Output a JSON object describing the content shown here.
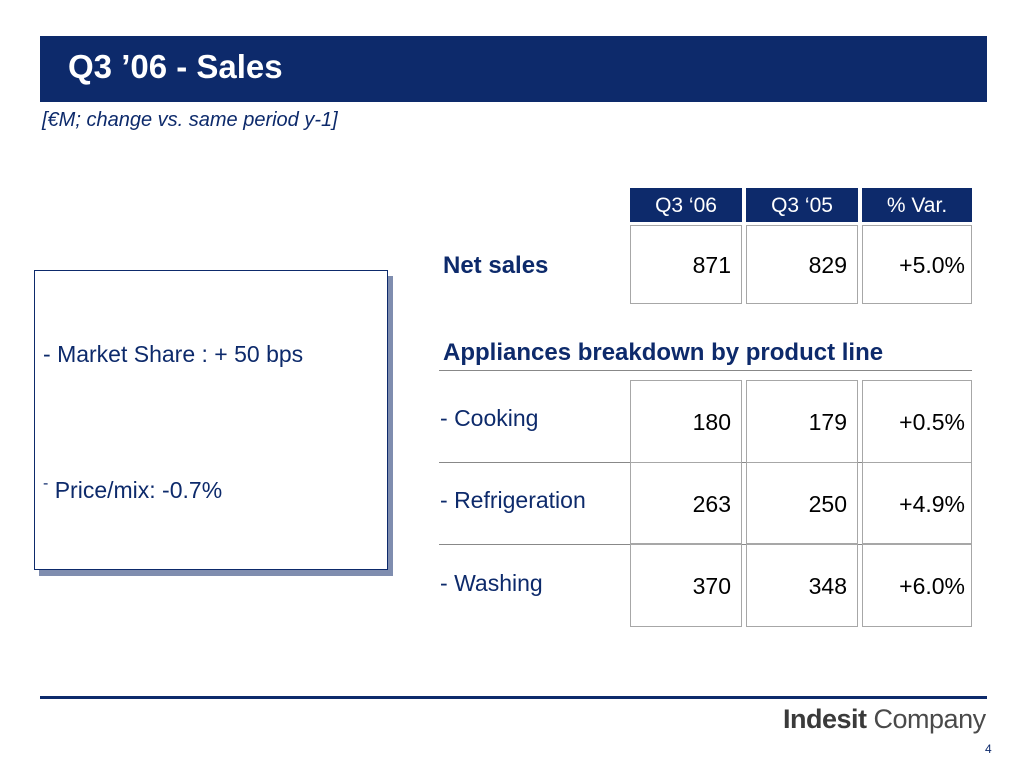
{
  "slide": {
    "title": "Q3 ’06 - Sales",
    "subtitle": "[€M; change vs. same period y-1]",
    "page_number": "4"
  },
  "table": {
    "headers": [
      "Q3 ‘06",
      "Q3 ‘05",
      "% Var."
    ],
    "net_sales": {
      "label": "Net sales",
      "values": [
        "871",
        "829",
        "+5.0%"
      ]
    },
    "section_title": "Appliances breakdown by product line",
    "rows": [
      {
        "prefix": "-",
        "label": "Cooking",
        "values": [
          "180",
          "179",
          "+0.5%"
        ]
      },
      {
        "prefix": "-",
        "label": "Refrigeration",
        "values": [
          "263",
          "250",
          "+4.9%"
        ]
      },
      {
        "prefix": "-",
        "label": "Washing",
        "values": [
          "370",
          "348",
          "+6.0%"
        ]
      }
    ]
  },
  "notes": [
    {
      "prefix": "-",
      "text": "Market Share : + 50 bps"
    },
    {
      "prefix": "-",
      "text": "Price/mix: -0.7%"
    }
  ],
  "footer": {
    "logo_brand": "Indesit",
    "logo_suffix": "Company"
  }
}
